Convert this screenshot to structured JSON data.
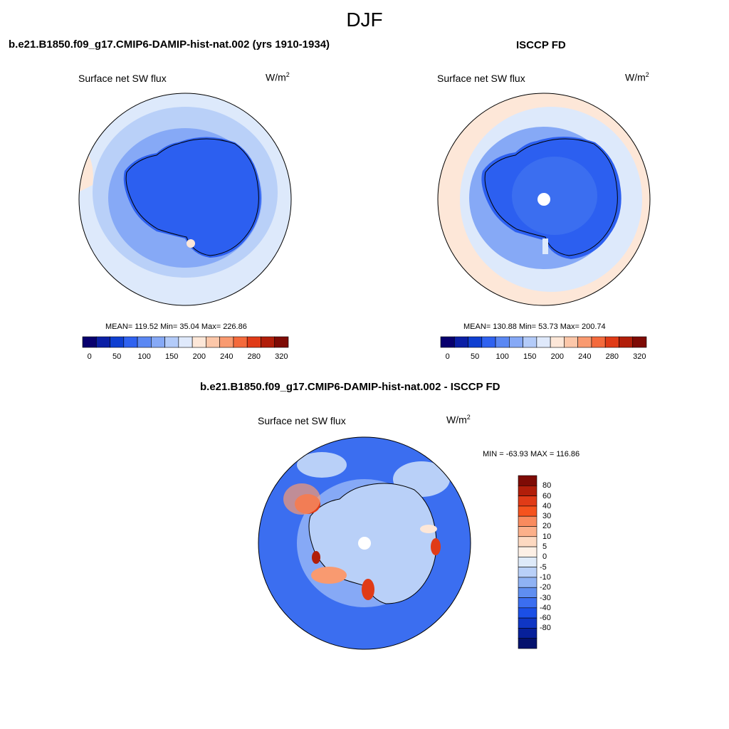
{
  "season": "DJF",
  "panels": {
    "model": {
      "title": "b.e21.B1850.f09_g17.CMIP6-DAMIP-hist-nat.002 (yrs 1910-1934)",
      "variable": "Surface net SW flux",
      "unit_base": "W/m",
      "unit_exp": "2",
      "stats": "MEAN= 119.52  Min=  35.04  Max= 226.86"
    },
    "obs": {
      "title": "ISCCP FD",
      "variable": "Surface net SW flux",
      "unit_base": "W/m",
      "unit_exp": "2",
      "stats": "MEAN= 130.88  Min=  53.73  Max= 200.74"
    },
    "diff": {
      "title": "b.e21.B1850.f09_g17.CMIP6-DAMIP-hist-nat.002 - ISCCP FD",
      "variable": "Surface net SW flux",
      "unit_base": "W/m",
      "unit_exp": "2",
      "stats": "MIN = -63.93 MAX = 116.86"
    }
  },
  "colorbar_main": {
    "colors": [
      "#08006e",
      "#0b1fa5",
      "#0f3fd1",
      "#2f62f0",
      "#5b88f3",
      "#86a9f6",
      "#b3cbf9",
      "#dfe9fb",
      "#fde7d8",
      "#fcc7a9",
      "#f99a70",
      "#f46a3c",
      "#e03b17",
      "#b11e0a",
      "#7e0b05"
    ],
    "tick_labels": [
      "0",
      "50",
      "100",
      "150",
      "200",
      "240",
      "280",
      "320"
    ]
  },
  "colorbar_diff": {
    "colors": [
      "#7e0b05",
      "#b11e0a",
      "#e03b17",
      "#f5531e",
      "#f98b5e",
      "#fcb08a",
      "#fdd9c1",
      "#fdf0e6",
      "#deeaf9",
      "#b9d0f8",
      "#8fb2f4",
      "#5f8ef0",
      "#3b6ef0",
      "#1b4fe6",
      "#0f36c4",
      "#07209a",
      "#05126d"
    ],
    "tick_labels": [
      "80",
      "60",
      "40",
      "30",
      "20",
      "10",
      "5",
      "0",
      "-5",
      "-10",
      "-20",
      "-30",
      "-40",
      "-60",
      "-80"
    ]
  },
  "map_colors": {
    "deep_blue": "#2c5ff0",
    "mid_blue": "#3b6ef0",
    "light_blue": "#86a9f6",
    "pale_blue": "#b9d0f8",
    "very_pale_blue": "#dde9fb",
    "pale_orange": "#fde7d8",
    "orange": "#f99a70",
    "red": "#e03b17",
    "dark_red": "#b11e0a"
  }
}
